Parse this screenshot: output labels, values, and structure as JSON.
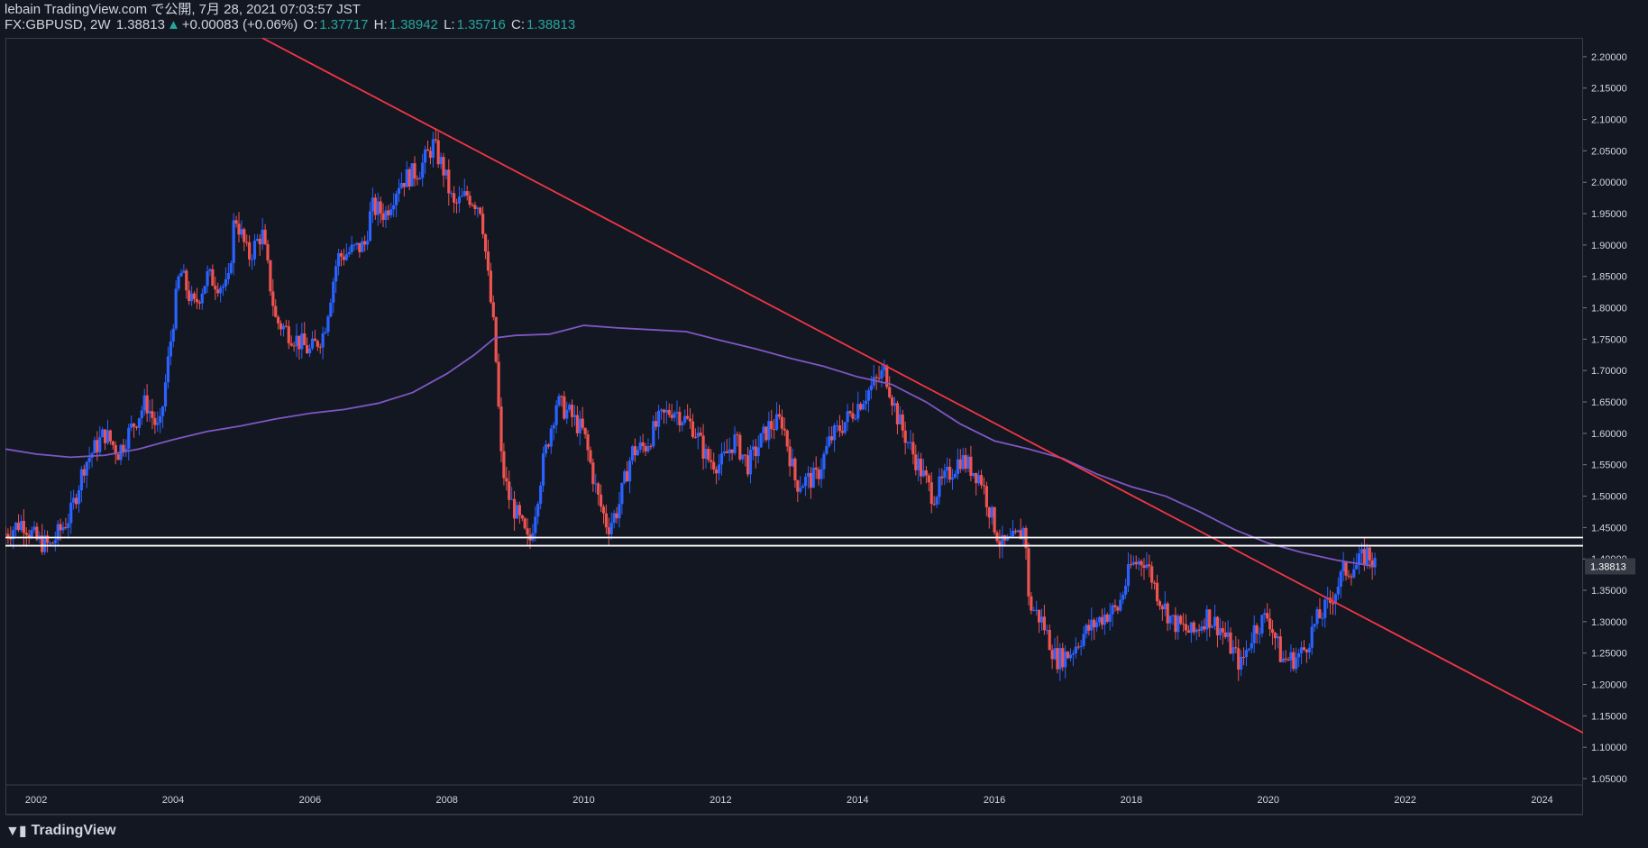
{
  "header": {
    "publish_line": "lebain TradingView.com で公開, 7月 28, 2021 07:03:57 JST",
    "symbol": "FX:GBPUSD, 2W",
    "last": "1.38813",
    "change_arrow": "▲",
    "change": "+0.00083 (+0.06%)",
    "o_label": "O:",
    "o_value": "1.37717",
    "h_label": "H:",
    "h_value": "1.38942",
    "l_label": "L:",
    "l_value": "1.35716",
    "c_label": "C:",
    "c_value": "1.38813"
  },
  "footer": {
    "brand": "TradingView",
    "logo_icon": "tradingview-logo-icon"
  },
  "colors": {
    "background": "#131722",
    "up_candle": "#2962ff",
    "down_candle": "#ef5350",
    "ma_line": "#7e57c2",
    "trendline": "#f23645",
    "level_lines": "#ffffff",
    "axis_text": "#d1d4dc",
    "price_tag_bg": "#363a45"
  },
  "chart_data": {
    "type": "candlestick",
    "symbol": "FX:GBPUSD",
    "interval": "2W",
    "x_range": [
      2001.55,
      2024.6
    ],
    "y_range": [
      1.04,
      2.23
    ],
    "x_ticks": [
      "2002",
      "2004",
      "2006",
      "2008",
      "2010",
      "2012",
      "2014",
      "2016",
      "2018",
      "2020",
      "2022",
      "2024"
    ],
    "y_ticks": [
      "1.05000",
      "1.10000",
      "1.15000",
      "1.20000",
      "1.25000",
      "1.30000",
      "1.35000",
      "1.40000",
      "1.45000",
      "1.50000",
      "1.55000",
      "1.60000",
      "1.65000",
      "1.70000",
      "1.75000",
      "1.80000",
      "1.85000",
      "1.90000",
      "1.95000",
      "2.00000",
      "2.05000",
      "2.10000",
      "2.15000",
      "2.20000"
    ],
    "last_price_label": "1.38813",
    "last_price": 1.38813,
    "price_path": [
      [
        2001.55,
        1.44
      ],
      [
        2001.8,
        1.46
      ],
      [
        2002.0,
        1.43
      ],
      [
        2002.2,
        1.42
      ],
      [
        2002.5,
        1.47
      ],
      [
        2002.7,
        1.55
      ],
      [
        2003.0,
        1.6
      ],
      [
        2003.2,
        1.57
      ],
      [
        2003.6,
        1.65
      ],
      [
        2003.8,
        1.6
      ],
      [
        2004.0,
        1.78
      ],
      [
        2004.1,
        1.86
      ],
      [
        2004.3,
        1.8
      ],
      [
        2004.5,
        1.85
      ],
      [
        2004.8,
        1.83
      ],
      [
        2004.9,
        1.95
      ],
      [
        2005.1,
        1.88
      ],
      [
        2005.3,
        1.92
      ],
      [
        2005.5,
        1.78
      ],
      [
        2005.7,
        1.76
      ],
      [
        2006.0,
        1.73
      ],
      [
        2006.2,
        1.76
      ],
      [
        2006.4,
        1.88
      ],
      [
        2006.8,
        1.9
      ],
      [
        2006.9,
        1.96
      ],
      [
        2007.1,
        1.95
      ],
      [
        2007.3,
        2.0
      ],
      [
        2007.6,
        2.02
      ],
      [
        2007.8,
        2.06
      ],
      [
        2007.95,
        2.02
      ],
      [
        2008.1,
        1.96
      ],
      [
        2008.3,
        1.98
      ],
      [
        2008.5,
        1.96
      ],
      [
        2008.6,
        1.85
      ],
      [
        2008.7,
        1.75
      ],
      [
        2008.8,
        1.55
      ],
      [
        2008.9,
        1.5
      ],
      [
        2009.1,
        1.45
      ],
      [
        2009.2,
        1.42
      ],
      [
        2009.4,
        1.55
      ],
      [
        2009.6,
        1.65
      ],
      [
        2009.8,
        1.63
      ],
      [
        2010.0,
        1.6
      ],
      [
        2010.2,
        1.5
      ],
      [
        2010.35,
        1.45
      ],
      [
        2010.5,
        1.48
      ],
      [
        2010.7,
        1.57
      ],
      [
        2010.9,
        1.58
      ],
      [
        2011.1,
        1.62
      ],
      [
        2011.3,
        1.64
      ],
      [
        2011.6,
        1.61
      ],
      [
        2011.8,
        1.56
      ],
      [
        2012.0,
        1.55
      ],
      [
        2012.2,
        1.59
      ],
      [
        2012.4,
        1.55
      ],
      [
        2012.7,
        1.61
      ],
      [
        2012.9,
        1.62
      ],
      [
        2013.1,
        1.52
      ],
      [
        2013.4,
        1.53
      ],
      [
        2013.6,
        1.59
      ],
      [
        2013.9,
        1.63
      ],
      [
        2014.1,
        1.66
      ],
      [
        2014.4,
        1.7
      ],
      [
        2014.6,
        1.62
      ],
      [
        2014.8,
        1.57
      ],
      [
        2015.1,
        1.5
      ],
      [
        2015.3,
        1.53
      ],
      [
        2015.5,
        1.56
      ],
      [
        2015.8,
        1.53
      ],
      [
        2015.95,
        1.47
      ],
      [
        2016.1,
        1.42
      ],
      [
        2016.3,
        1.43
      ],
      [
        2016.45,
        1.45
      ],
      [
        2016.5,
        1.33
      ],
      [
        2016.7,
        1.3
      ],
      [
        2016.9,
        1.24
      ],
      [
        2017.1,
        1.25
      ],
      [
        2017.3,
        1.28
      ],
      [
        2017.6,
        1.31
      ],
      [
        2017.8,
        1.32
      ],
      [
        2018.0,
        1.39
      ],
      [
        2018.2,
        1.4
      ],
      [
        2018.4,
        1.34
      ],
      [
        2018.6,
        1.3
      ],
      [
        2018.9,
        1.28
      ],
      [
        2019.1,
        1.31
      ],
      [
        2019.3,
        1.29
      ],
      [
        2019.6,
        1.23
      ],
      [
        2019.8,
        1.29
      ],
      [
        2020.0,
        1.31
      ],
      [
        2020.2,
        1.24
      ],
      [
        2020.35,
        1.24
      ],
      [
        2020.5,
        1.25
      ],
      [
        2020.7,
        1.3
      ],
      [
        2020.9,
        1.33
      ],
      [
        2021.1,
        1.38
      ],
      [
        2021.3,
        1.39
      ],
      [
        2021.45,
        1.41
      ],
      [
        2021.57,
        1.38813
      ]
    ],
    "moving_average": [
      [
        2001.55,
        1.575
      ],
      [
        2002.0,
        1.567
      ],
      [
        2002.5,
        1.562
      ],
      [
        2003.0,
        1.565
      ],
      [
        2003.5,
        1.575
      ],
      [
        2004.0,
        1.59
      ],
      [
        2004.5,
        1.603
      ],
      [
        2005.0,
        1.612
      ],
      [
        2005.5,
        1.623
      ],
      [
        2006.0,
        1.632
      ],
      [
        2006.5,
        1.638
      ],
      [
        2007.0,
        1.648
      ],
      [
        2007.5,
        1.665
      ],
      [
        2008.0,
        1.695
      ],
      [
        2008.4,
        1.725
      ],
      [
        2008.7,
        1.752
      ],
      [
        2009.0,
        1.756
      ],
      [
        2009.5,
        1.758
      ],
      [
        2010.0,
        1.772
      ],
      [
        2010.5,
        1.768
      ],
      [
        2011.0,
        1.765
      ],
      [
        2011.5,
        1.762
      ],
      [
        2012.0,
        1.748
      ],
      [
        2012.5,
        1.735
      ],
      [
        2013.0,
        1.72
      ],
      [
        2013.5,
        1.707
      ],
      [
        2014.0,
        1.69
      ],
      [
        2014.5,
        1.678
      ],
      [
        2015.0,
        1.65
      ],
      [
        2015.5,
        1.615
      ],
      [
        2016.0,
        1.588
      ],
      [
        2016.5,
        1.575
      ],
      [
        2017.0,
        1.56
      ],
      [
        2017.5,
        1.535
      ],
      [
        2018.0,
        1.515
      ],
      [
        2018.5,
        1.5
      ],
      [
        2019.0,
        1.475
      ],
      [
        2019.5,
        1.447
      ],
      [
        2020.0,
        1.425
      ],
      [
        2020.5,
        1.41
      ],
      [
        2021.0,
        1.398
      ],
      [
        2021.57,
        1.388
      ]
    ],
    "trendline": [
      [
        2005.3,
        2.23
      ],
      [
        2024.6,
        1.123
      ]
    ],
    "horizontal_levels": [
      1.421,
      1.434
    ]
  }
}
